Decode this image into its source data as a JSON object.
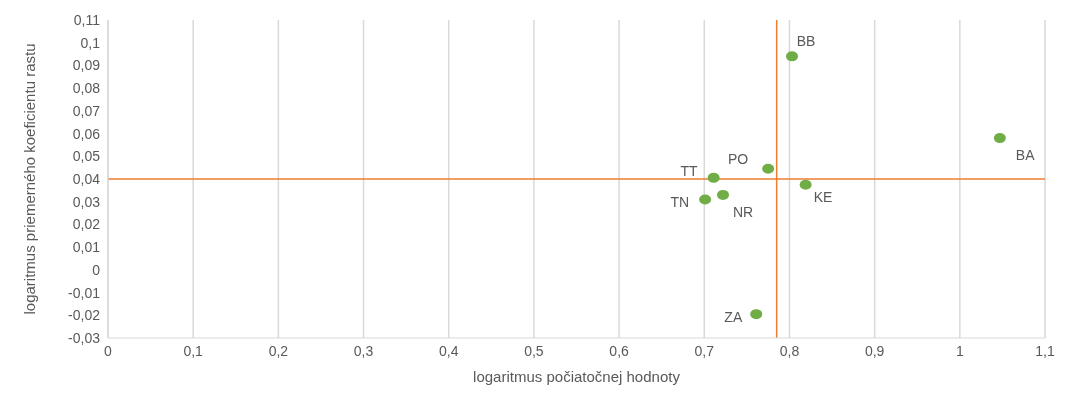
{
  "chart_data": {
    "type": "scatter",
    "xlabel": "logaritmus počiatočnej hodnoty",
    "ylabel": "logaritmus priemerného koeficientu rastu",
    "x": [
      0.803,
      1.047,
      0.775,
      0.711,
      0.819,
      0.722,
      0.701,
      0.761
    ],
    "series": [
      {
        "color": "#70ad47",
        "values": [
          0.094,
          0.058,
          0.0445,
          0.0405,
          0.0375,
          0.033,
          0.031,
          -0.0195
        ]
      }
    ],
    "xlim": [
      0,
      1.1
    ],
    "xticks": [
      {
        "value": 0,
        "label": "0"
      },
      {
        "value": 0.1,
        "label": "0,1"
      },
      {
        "value": 0.2,
        "label": "0,2"
      },
      {
        "value": 0.3,
        "label": "0,3"
      },
      {
        "value": 0.4,
        "label": "0,4"
      },
      {
        "value": 0.5,
        "label": "0,5"
      },
      {
        "value": 0.6,
        "label": "0,6"
      },
      {
        "value": 0.7,
        "label": "0,7"
      },
      {
        "value": 0.8,
        "label": "0,8"
      },
      {
        "value": 0.9,
        "label": "0,9"
      },
      {
        "value": 1,
        "label": "1"
      },
      {
        "value": 1.1,
        "label": "1,1"
      }
    ],
    "ylim": [
      -0.03,
      0.11
    ],
    "yticks": [
      {
        "value": -0.03,
        "label": "-0,03"
      },
      {
        "value": -0.02,
        "label": "-0,02"
      },
      {
        "value": -0.01,
        "label": "-0,01"
      },
      {
        "value": 0,
        "label": "0"
      },
      {
        "value": 0.01,
        "label": "0,01"
      },
      {
        "value": 0.02,
        "label": "0,02"
      },
      {
        "value": 0.03,
        "label": "0,03"
      },
      {
        "value": 0.04,
        "label": "0,04"
      },
      {
        "value": 0.05,
        "label": "0,05"
      },
      {
        "value": 0.06,
        "label": "0,06"
      },
      {
        "value": 0.07,
        "label": "0,07"
      },
      {
        "value": 0.08,
        "label": "0,08"
      },
      {
        "value": 0.09,
        "label": "0,09"
      },
      {
        "value": 0.1,
        "label": "0,1"
      },
      {
        "value": 0.11,
        "label": "0,11"
      }
    ],
    "ref_lines": [
      {
        "axis": "x",
        "value": 0.785,
        "color": "#ed7d31"
      },
      {
        "axis": "y",
        "value": 0.04,
        "color": "#ed7d31"
      }
    ],
    "annotations": [
      {
        "text": "BB",
        "x": 0.803,
        "y": 0.094
      },
      {
        "text": "BA",
        "x": 1.047,
        "y": 0.058
      },
      {
        "text": "PO",
        "x": 0.775,
        "y": 0.0445
      },
      {
        "text": "TT",
        "x": 0.711,
        "y": 0.0405
      },
      {
        "text": "KE",
        "x": 0.819,
        "y": 0.0375
      },
      {
        "text": "NR",
        "x": 0.722,
        "y": 0.033
      },
      {
        "text": "TN",
        "x": 0.701,
        "y": 0.031
      },
      {
        "text": "ZA",
        "x": 0.761,
        "y": -0.0195
      }
    ],
    "grid": "x",
    "marker": "circle"
  }
}
